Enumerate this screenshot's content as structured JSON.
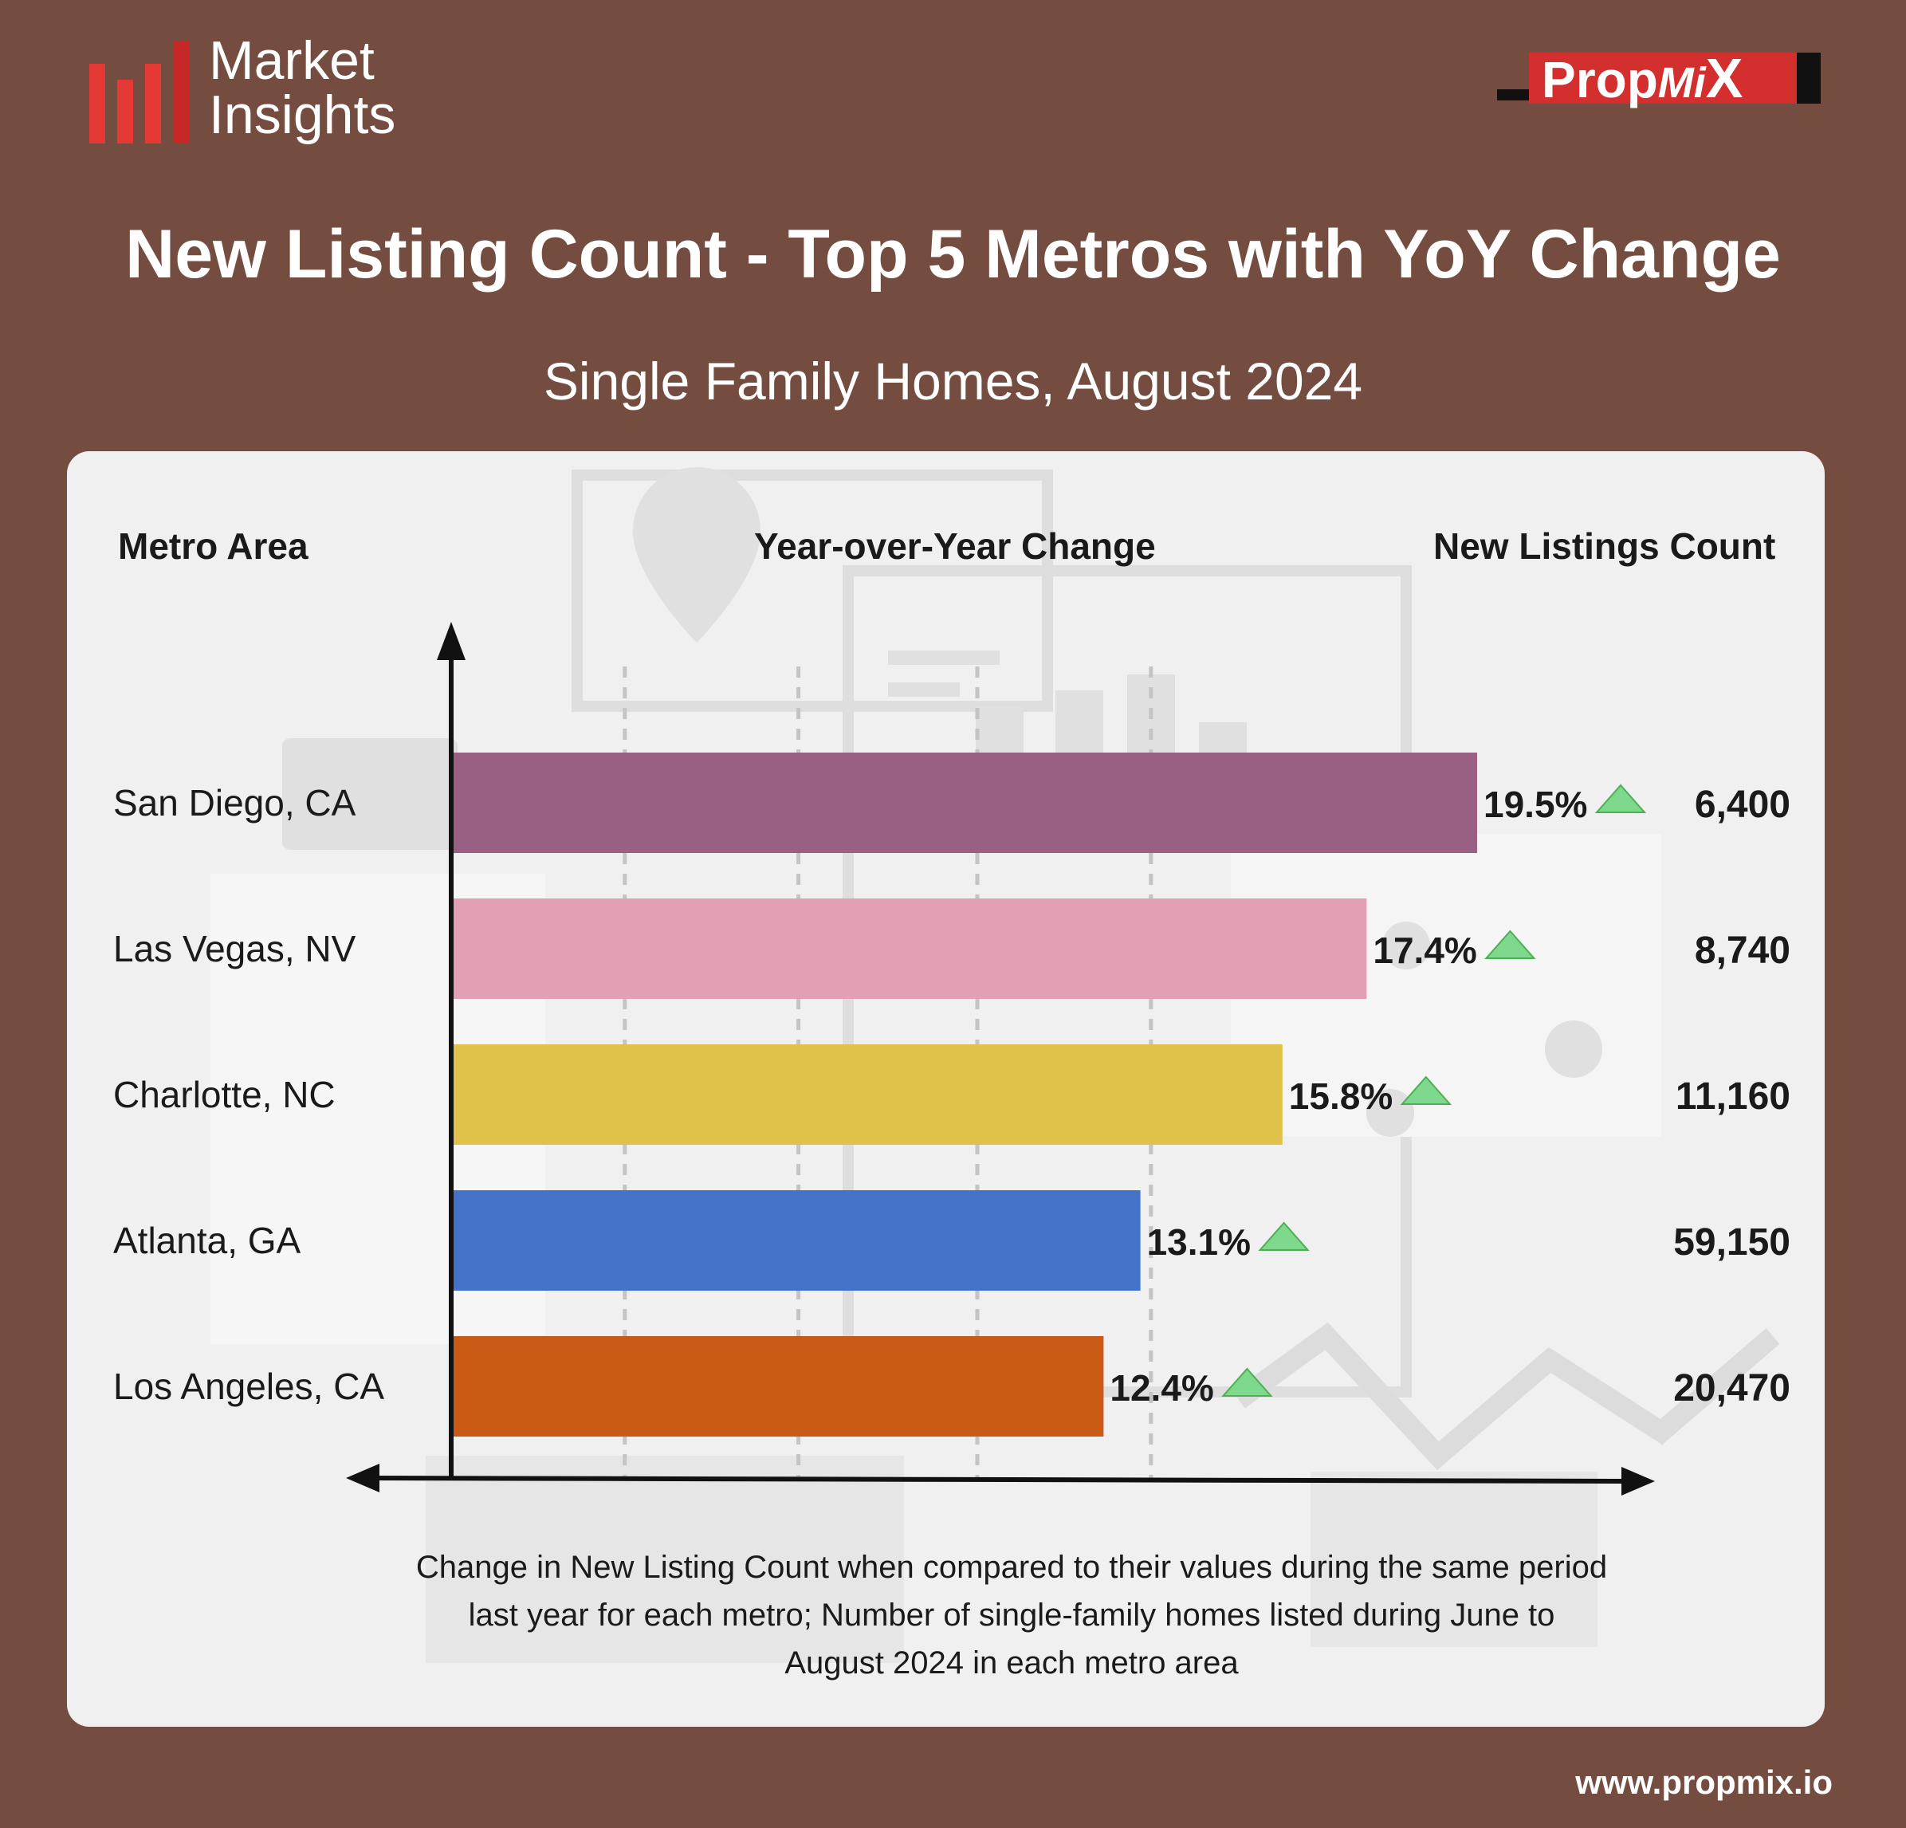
{
  "brand": {
    "line1": "Market",
    "line2": "Insights"
  },
  "partner": {
    "part1": "Prop",
    "part2": "Mi",
    "part3": "X"
  },
  "header": {
    "title": "New Listing Count - Top 5 Metros with YoY Change",
    "subtitle": "Single Family Homes, August 2024"
  },
  "columns": {
    "metro": "Metro Area",
    "yoy": "Year-over-Year Change",
    "count": "New Listings Count"
  },
  "chart_data": {
    "type": "bar",
    "orientation": "horizontal",
    "categories": [
      "San Diego, CA",
      "Las Vegas, NV",
      "Charlotte, NC",
      "Atlanta, GA",
      "Los Angeles, CA"
    ],
    "values": [
      19.5,
      17.4,
      15.8,
      13.1,
      12.4
    ],
    "value_labels": [
      "19.5%",
      "17.4%",
      "15.8%",
      "13.1%",
      "12.4%"
    ],
    "counts": [
      "6,400",
      "8,740",
      "11,160",
      "59,150",
      "20,470"
    ],
    "colors": [
      "#9a6084",
      "#e3a0b5",
      "#e0c24a",
      "#4472c9",
      "#c85a15"
    ],
    "xlim": [
      0,
      25
    ],
    "up_arrow_color": "#7ed98f"
  },
  "footnote": {
    "line1": "Change in New Listing Count when compared to their values during the same period",
    "line2": "last year for each metro;  Number of single-family homes listed during June to",
    "line3": "August 2024 in each metro area"
  },
  "website": "www.propmix.io"
}
